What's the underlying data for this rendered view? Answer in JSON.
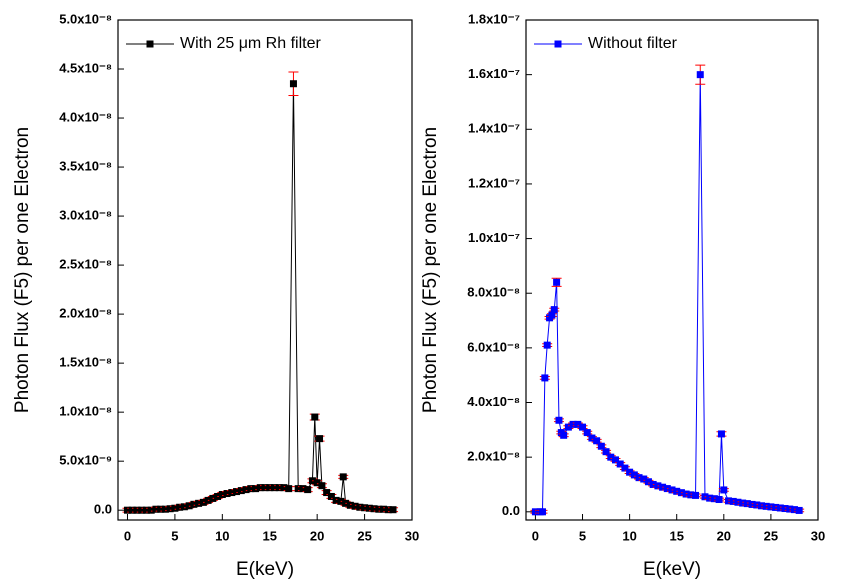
{
  "chart_data": [
    {
      "type": "line",
      "xlabel": "E(keV)",
      "ylabel": "Photon Flux (F5) per one Electron",
      "xlim": [
        -1,
        30
      ],
      "ylim": [
        -1e-09,
        5e-08
      ],
      "xticks": [
        0,
        5,
        10,
        15,
        20,
        25,
        30
      ],
      "yticks": [
        {
          "value": 0,
          "label": "0.0"
        },
        {
          "value": 5e-09,
          "label": "5.0x10⁻⁹"
        },
        {
          "value": 1e-08,
          "label": "1.0x10⁻⁸"
        },
        {
          "value": 1.5e-08,
          "label": "1.5x10⁻⁸"
        },
        {
          "value": 2e-08,
          "label": "2.0x10⁻⁸"
        },
        {
          "value": 2.5e-08,
          "label": "2.5x10⁻⁸"
        },
        {
          "value": 3e-08,
          "label": "3.0x10⁻⁸"
        },
        {
          "value": 3.5e-08,
          "label": "3.5x10⁻⁸"
        },
        {
          "value": 4e-08,
          "label": "4.0x10⁻⁸"
        },
        {
          "value": 4.5e-08,
          "label": "4.5x10⁻⁸"
        },
        {
          "value": 5e-08,
          "label": "5.0x10⁻⁸"
        }
      ],
      "legend": "upper left",
      "series": [
        {
          "name": "With 25 μm Rh filter",
          "color": "#000000",
          "error_color": "#ff0000",
          "x": [
            0,
            0.5,
            1,
            1.5,
            2,
            2.5,
            3,
            3.5,
            4,
            4.5,
            5,
            5.5,
            6,
            6.5,
            7,
            7.5,
            8,
            8.5,
            9,
            9.5,
            10,
            10.5,
            11,
            11.5,
            12,
            12.5,
            13,
            13.5,
            14,
            14.5,
            15,
            15.5,
            16,
            16.5,
            17,
            17.5,
            18,
            18.5,
            19,
            19.5,
            19.75,
            20,
            20.25,
            20.5,
            21,
            21.5,
            22,
            22.5,
            22.75,
            23,
            23.5,
            24,
            24.5,
            25,
            25.5,
            26,
            26.5,
            27,
            27.5,
            28
          ],
          "values": [
            0,
            0,
            0,
            0,
            0,
            0,
            1e-10,
            1e-10,
            1e-10,
            1.5e-10,
            2e-10,
            3e-10,
            3.5e-10,
            4.5e-10,
            6e-10,
            7e-10,
            8e-10,
            1e-09,
            1.2e-09,
            1.4e-09,
            1.6e-09,
            1.7e-09,
            1.8e-09,
            1.9e-09,
            2e-09,
            2.1e-09,
            2.2e-09,
            2.2e-09,
            2.3e-09,
            2.3e-09,
            2.3e-09,
            2.3e-09,
            2.3e-09,
            2.3e-09,
            2.2e-09,
            4.35e-08,
            2.2e-09,
            2.2e-09,
            2.1e-09,
            3e-09,
            9.5e-09,
            2.8e-09,
            7.3e-09,
            2.5e-09,
            1.8e-09,
            1.4e-09,
            1e-09,
            9e-10,
            3.4e-09,
            7e-10,
            5e-10,
            4e-10,
            3e-10,
            2.5e-10,
            2e-10,
            1.5e-10,
            1e-10,
            1e-10,
            5e-11,
            5e-11
          ],
          "errors": [
            2e-10,
            2e-10,
            2e-10,
            2e-10,
            2e-10,
            2e-10,
            2e-10,
            2e-10,
            2e-10,
            2e-10,
            2e-10,
            2e-10,
            2e-10,
            2e-10,
            2e-10,
            2e-10,
            2e-10,
            2e-10,
            2e-10,
            2e-10,
            2e-10,
            2e-10,
            2e-10,
            2e-10,
            2e-10,
            2e-10,
            2e-10,
            2e-10,
            2e-10,
            2e-10,
            2e-10,
            2e-10,
            2e-10,
            2e-10,
            2e-10,
            1.2e-09,
            2e-10,
            2e-10,
            2e-10,
            2e-10,
            3e-10,
            2e-10,
            2.5e-10,
            2e-10,
            2e-10,
            2e-10,
            2e-10,
            2e-10,
            1.5e-10,
            2e-10,
            2e-10,
            2e-10,
            2e-10,
            2e-10,
            2e-10,
            2e-10,
            2e-10,
            2e-10,
            2e-10,
            2e-10
          ]
        }
      ]
    },
    {
      "type": "line",
      "xlabel": "E(keV)",
      "ylabel": "Photon Flux (F5) per one Electron",
      "xlim": [
        -1,
        30
      ],
      "ylim": [
        -3e-09,
        1.8e-07
      ],
      "xticks": [
        0,
        5,
        10,
        15,
        20,
        25,
        30
      ],
      "yticks": [
        {
          "value": 0,
          "label": "0.0"
        },
        {
          "value": 2e-08,
          "label": "2.0x10⁻⁸"
        },
        {
          "value": 4e-08,
          "label": "4.0x10⁻⁸"
        },
        {
          "value": 6e-08,
          "label": "6.0x10⁻⁸"
        },
        {
          "value": 8e-08,
          "label": "8.0x10⁻⁸"
        },
        {
          "value": 1e-07,
          "label": "1.0x10⁻⁷"
        },
        {
          "value": 1.2e-07,
          "label": "1.2x10⁻⁷"
        },
        {
          "value": 1.4e-07,
          "label": "1.4x10⁻⁷"
        },
        {
          "value": 1.6e-07,
          "label": "1.6x10⁻⁷"
        },
        {
          "value": 1.8e-07,
          "label": "1.8x10⁻⁷"
        }
      ],
      "legend": "upper left",
      "series": [
        {
          "name": "Without filter",
          "color": "#0000ff",
          "error_color": "#ff0000",
          "x": [
            0,
            0.5,
            0.75,
            1,
            1.25,
            1.5,
            1.75,
            2,
            2.25,
            2.5,
            2.75,
            3,
            3.5,
            4,
            4.5,
            5,
            5.5,
            6,
            6.5,
            7,
            7.5,
            8,
            8.5,
            9,
            9.5,
            10,
            10.5,
            11,
            11.5,
            12,
            12.5,
            13,
            13.5,
            14,
            14.5,
            15,
            15.5,
            16,
            16.5,
            17,
            17.5,
            18,
            18.5,
            19,
            19.5,
            19.75,
            20,
            20.5,
            21,
            21.5,
            22,
            22.5,
            23,
            23.5,
            24,
            24.5,
            25,
            25.5,
            26,
            26.5,
            27,
            27.5,
            28
          ],
          "values": [
            0,
            0,
            0,
            4.9e-08,
            6.1e-08,
            7.1e-08,
            7.2e-08,
            7.4e-08,
            8.4e-08,
            3.35e-08,
            2.9e-08,
            2.8e-08,
            3.1e-08,
            3.2e-08,
            3.2e-08,
            3.1e-08,
            2.9e-08,
            2.7e-08,
            2.6e-08,
            2.4e-08,
            2.2e-08,
            2e-08,
            1.9e-08,
            1.75e-08,
            1.6e-08,
            1.45e-08,
            1.35e-08,
            1.25e-08,
            1.2e-08,
            1.1e-08,
            1e-08,
            9.5e-09,
            9e-09,
            8.5e-09,
            8e-09,
            7.5e-09,
            7e-09,
            6.5e-09,
            6.2e-09,
            6e-09,
            1.6e-07,
            5.5e-09,
            5e-09,
            4.8e-09,
            4.5e-09,
            2.85e-08,
            8e-09,
            4e-09,
            3.8e-09,
            3.5e-09,
            3.2e-09,
            3e-09,
            2.7e-09,
            2.5e-09,
            2.2e-09,
            2e-09,
            1.8e-09,
            1.6e-09,
            1.4e-09,
            1.2e-09,
            1e-09,
            8e-10,
            5e-10
          ],
          "errors": [
            5e-10,
            5e-10,
            5e-10,
            5e-10,
            5e-10,
            5e-10,
            5e-10,
            5e-10,
            1.5e-09,
            5e-10,
            5e-10,
            5e-10,
            5e-10,
            5e-10,
            5e-10,
            5e-10,
            5e-10,
            5e-10,
            5e-10,
            5e-10,
            5e-10,
            5e-10,
            5e-10,
            5e-10,
            5e-10,
            5e-10,
            5e-10,
            5e-10,
            5e-10,
            5e-10,
            5e-10,
            5e-10,
            5e-10,
            5e-10,
            5e-10,
            5e-10,
            5e-10,
            5e-10,
            5e-10,
            5e-10,
            3.5e-09,
            5e-10,
            5e-10,
            5e-10,
            5e-10,
            8e-10,
            5e-10,
            5e-10,
            5e-10,
            5e-10,
            5e-10,
            5e-10,
            5e-10,
            5e-10,
            5e-10,
            5e-10,
            5e-10,
            5e-10,
            5e-10,
            5e-10,
            5e-10,
            5e-10,
            5e-10
          ]
        }
      ]
    }
  ]
}
